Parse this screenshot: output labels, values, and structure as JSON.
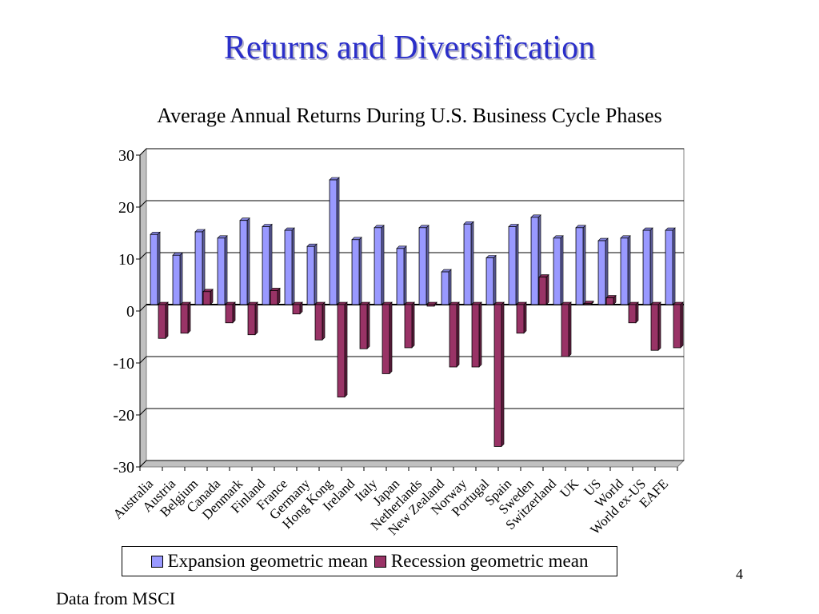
{
  "slide": {
    "title": "Returns and Diversification",
    "page_number": "4",
    "source_note": "Data from MSCI"
  },
  "colors": {
    "title": "#2b2fc9",
    "expansion": "#9999ff",
    "recession": "#993366"
  },
  "chart_data": {
    "type": "bar",
    "title": "Average Annual Returns During U.S. Business Cycle Phases",
    "xlabel": "",
    "ylabel": "",
    "ylim": [
      -30,
      30
    ],
    "yticks": [
      30,
      20,
      10,
      0,
      -10,
      -20,
      -30
    ],
    "grid": true,
    "legend_position": "bottom",
    "categories": [
      "Australia",
      "Austria",
      "Belgium",
      "Canada",
      "Denmark",
      "Finland",
      "France",
      "Germany",
      "Hong Kong",
      "Ireland",
      "Italy",
      "Japan",
      "Netherlands",
      "New Zealand",
      "Norway",
      "Portugal",
      "Spain",
      "Sweden",
      "Switzerland",
      "UK",
      "US",
      "World",
      "World ex-US",
      "EAFE"
    ],
    "series": [
      {
        "name": "Expansion geometric mean",
        "values": [
          13.5,
          9.5,
          14,
          12.8,
          16.2,
          15,
          14.3,
          11.2,
          24,
          12.5,
          14.8,
          10.8,
          14.8,
          6.3,
          15.5,
          9,
          15,
          16.8,
          12.8,
          14.8,
          12.3,
          12.8,
          14.3,
          14.3
        ]
      },
      {
        "name": "Recession geometric mean",
        "values": [
          -6.5,
          -5.5,
          2.5,
          -3.5,
          -5.8,
          2.7,
          -1.8,
          -6.8,
          -17.8,
          -8.5,
          -13.3,
          -8.3,
          -0.3,
          -12,
          -12,
          -27.3,
          -5.5,
          5.3,
          -10,
          0.2,
          1.3,
          -3.5,
          -8.8,
          -8.3
        ]
      }
    ]
  }
}
